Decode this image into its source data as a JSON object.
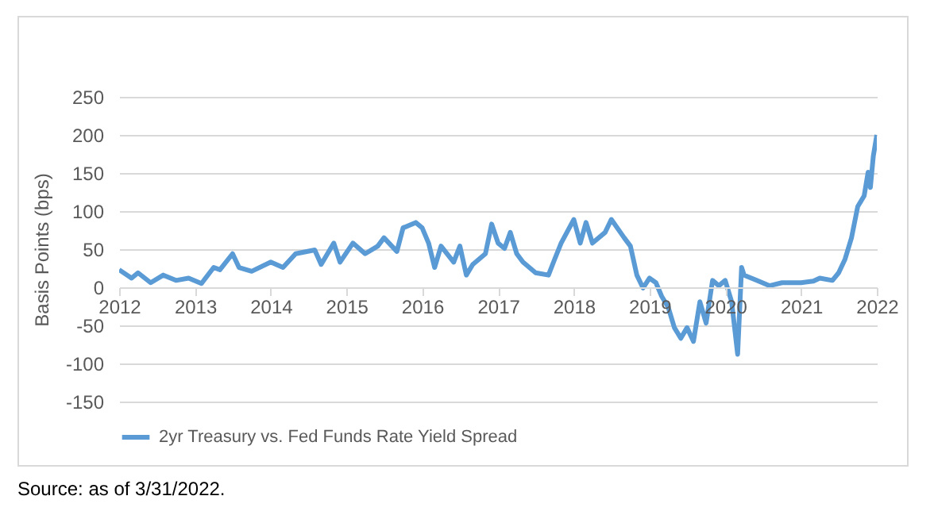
{
  "chart_data": {
    "type": "line",
    "ylabel": "Basis Points (bps)",
    "annotations": [
      "Source: as of 3/31/2022."
    ],
    "x": [
      "2012-01-01",
      "2012-03",
      "2012-04",
      "2012-06",
      "2012-08",
      "2012-10",
      "2012-12",
      "2013-02",
      "2013-04",
      "2013-05",
      "2013-07",
      "2013-08",
      "2013-10",
      "2014-01",
      "2014-03",
      "2014-05",
      "2014-08",
      "2014-09",
      "2014-11",
      "2014-12",
      "2015-02",
      "2015-04",
      "2015-06",
      "2015-07",
      "2015-09",
      "2015-10",
      "2015-12",
      "2016-01",
      "2016-02",
      "2016-03",
      "2016-04",
      "2016-06",
      "2016-07",
      "2016-08",
      "2016-09",
      "2016-11",
      "2016-12",
      "2017-01",
      "2017-02",
      "2017-03",
      "2017-04",
      "2017-05",
      "2017-07",
      "2017-09",
      "2017-10",
      "2017-11",
      "2018-01",
      "2018-02",
      "2018-03",
      "2018-04",
      "2018-06",
      "2018-07",
      "2018-09",
      "2018-10",
      "2018-11",
      "2018-12",
      "2019-01",
      "2019-02",
      "2019-03",
      "2019-04",
      "2019-05",
      "2019-06",
      "2019-07",
      "2019-08",
      "2019-09",
      "2019-10",
      "2019-11",
      "2019-12",
      "2020-01",
      "2020-02",
      "2020-03",
      "2020-03-20",
      "2020-04",
      "2020-06",
      "2020-08",
      "2020-10",
      "2021-01",
      "2021-03",
      "2021-04",
      "2021-06",
      "2021-07",
      "2021-08",
      "2021-09",
      "2021-10",
      "2021-11",
      "2021-11-20",
      "2021-12-01",
      "2021-12-15",
      "2022-01-01"
    ],
    "series": [
      {
        "name": "2yr Treasury vs. Fed Funds Rate Yield Spread",
        "color": "#5b9bd5",
        "values": [
          23,
          12,
          19,
          6,
          16,
          9,
          12,
          5,
          26,
          23,
          44,
          26,
          21,
          33,
          26,
          44,
          49,
          30,
          58,
          33,
          58,
          44,
          54,
          65,
          47,
          78,
          85,
          78,
          58,
          26,
          54,
          33,
          54,
          16,
          30,
          44,
          83,
          58,
          51,
          72,
          44,
          33,
          19,
          16,
          37,
          58,
          89,
          58,
          85,
          58,
          72,
          89,
          65,
          54,
          16,
          -1,
          12,
          6,
          -12,
          -26,
          -53,
          -67,
          -53,
          -71,
          -19,
          -47,
          9,
          2,
          9,
          -19,
          -88,
          26,
          16,
          9,
          2,
          6,
          6,
          8,
          12,
          9,
          19,
          37,
          65,
          106,
          120,
          151,
          131,
          172,
          200
        ]
      }
    ],
    "xlim": [
      "2012-01-01",
      "2022-01-01"
    ],
    "xticks": [
      {
        "value": "2012-01-01",
        "label": "2012"
      },
      {
        "value": "2013-01-01",
        "label": "2013"
      },
      {
        "value": "2014-01-01",
        "label": "2014"
      },
      {
        "value": "2015-01-01",
        "label": "2015"
      },
      {
        "value": "2016-01-01",
        "label": "2016"
      },
      {
        "value": "2017-01-01",
        "label": "2017"
      },
      {
        "value": "2018-01-01",
        "label": "2018"
      },
      {
        "value": "2019-01-01",
        "label": "2019"
      },
      {
        "value": "2020-01-01",
        "label": "2020"
      },
      {
        "value": "2021-01-01",
        "label": "2021"
      },
      {
        "value": "2022-01-01",
        "label": "2022"
      }
    ],
    "ylim": [
      -150,
      250
    ],
    "yticks": [
      -150,
      -100,
      -50,
      0,
      50,
      100,
      150,
      200,
      250
    ],
    "grid": "y",
    "legend": "bottom",
    "line_style": "solid",
    "marker": "none"
  }
}
